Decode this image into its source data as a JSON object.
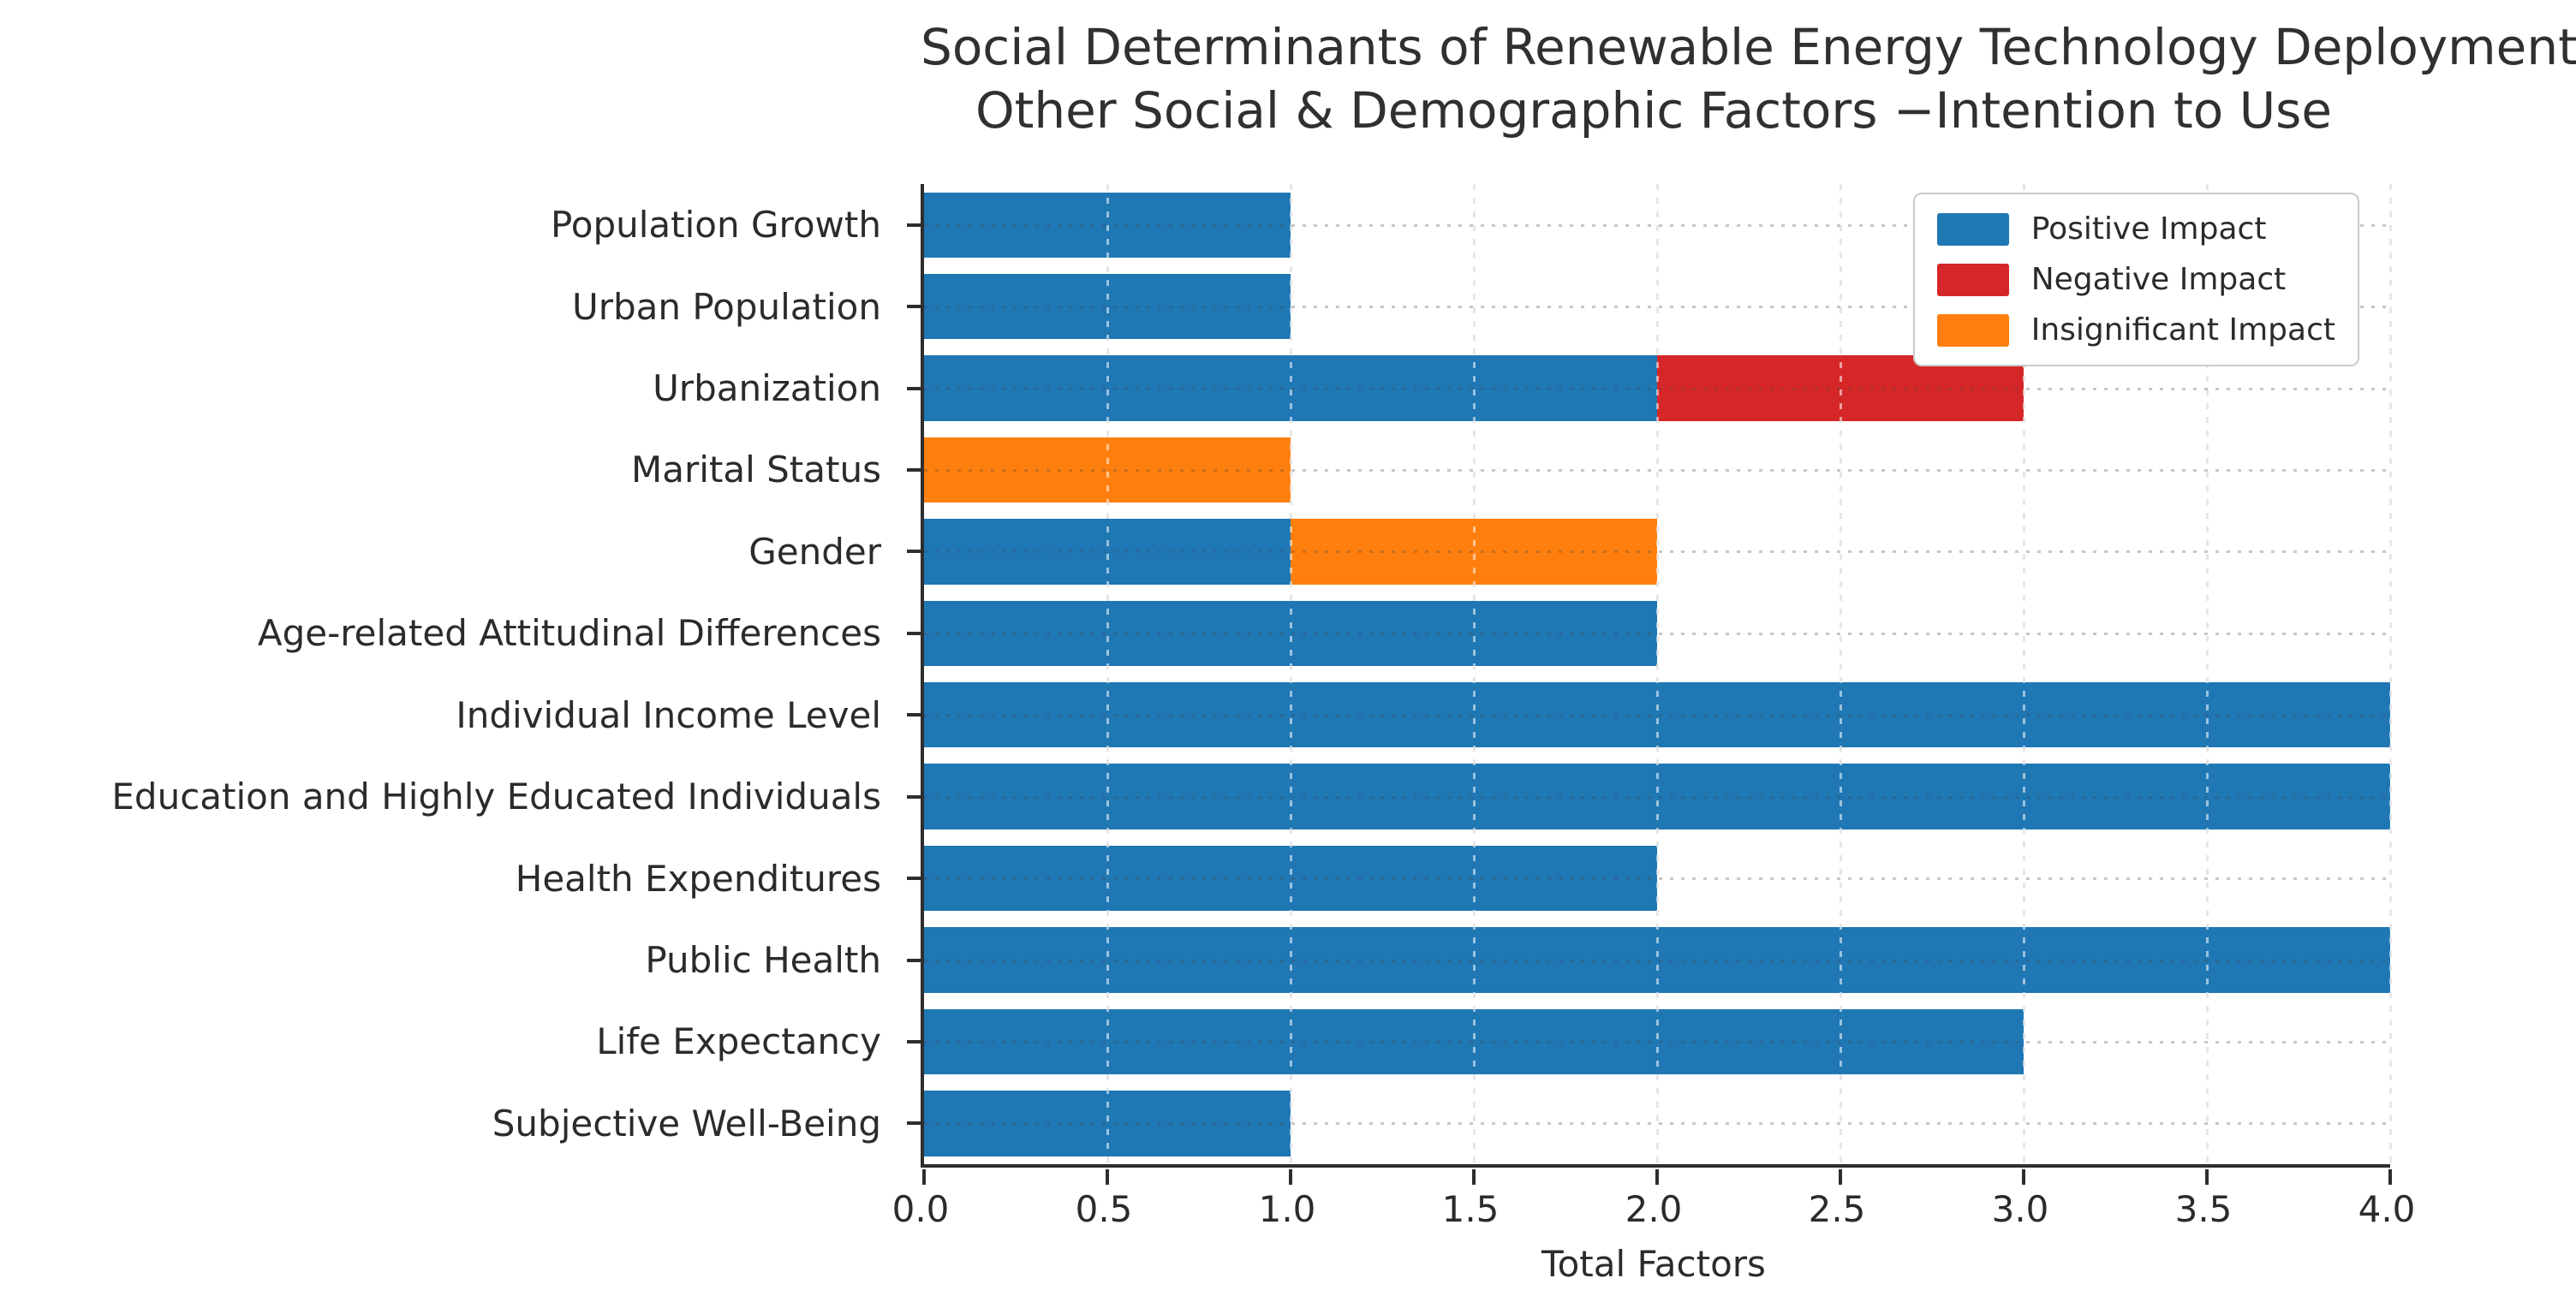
{
  "chart_data": {
    "type": "bar",
    "orientation": "horizontal",
    "stacked": true,
    "title_lines": [
      "Social Determinants of Renewable Energy Technology Deployment",
      "Other Social & Demographic Factors −Intention to Use"
    ],
    "xlabel": "Total Factors",
    "xlim": [
      0,
      4
    ],
    "x_tick_labels": [
      "0.0",
      "0.5",
      "1.0",
      "1.5",
      "2.0",
      "2.5",
      "3.0",
      "3.5",
      "4.0"
    ],
    "grid": true,
    "categories": [
      "Population Growth",
      "Urban Population",
      "Urbanization",
      "Marital Status",
      "Gender",
      "Age-related Attitudinal Differences",
      "Individual Income Level",
      "Education and Highly Educated Individuals",
      "Health Expenditures",
      "Public Health",
      "Life Expectancy",
      "Subjective Well-Being"
    ],
    "series": [
      {
        "name": "Positive Impact",
        "color": "#1f77b4",
        "values": [
          1,
          1,
          2,
          0,
          1,
          2,
          4,
          4,
          2,
          4,
          3,
          1
        ]
      },
      {
        "name": "Negative Impact",
        "color": "#d62728",
        "values": [
          0,
          0,
          1,
          0,
          0,
          0,
          0,
          0,
          0,
          0,
          0,
          0
        ]
      },
      {
        "name": "Insignificant Impact",
        "color": "#ff7f0e",
        "values": [
          0,
          0,
          0,
          1,
          1,
          0,
          0,
          0,
          0,
          0,
          0,
          0
        ]
      }
    ],
    "legend": {
      "position": "upper right",
      "entries": [
        "Positive Impact",
        "Negative Impact",
        "Insignificant Impact"
      ]
    }
  }
}
